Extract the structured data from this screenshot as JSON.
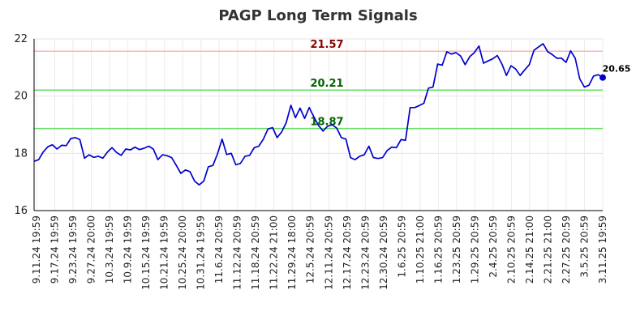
{
  "chart_data": {
    "type": "line",
    "title": "PAGP Long Term Signals",
    "ylim": [
      16,
      22
    ],
    "yticks": [
      16,
      18,
      20,
      22
    ],
    "grid": true,
    "xtick_labels": [
      "9.11.24 19:59",
      "9.17.24 19:59",
      "9.23.24 19:59",
      "9.27.24 20:00",
      "10.3.24 19:59",
      "10.9.24 19:59",
      "10.15.24 19:59",
      "10.21.24 19:59",
      "10.25.24 20:00",
      "10.31.24 19:59",
      "11.6.24 20:59",
      "11.12.24 20:59",
      "11.18.24 20:59",
      "11.22.24 21:00",
      "11.29.24 18:00",
      "12.5.24 20:59",
      "12.11.24 20:59",
      "12.17.24 20:59",
      "12.23.24 20:59",
      "12.30.24 20:59",
      "1.6.25 20:59",
      "1.10.25 21:00",
      "1.16.25 20:59",
      "1.23.25 20:59",
      "1.29.25 20:59",
      "2.4.25 20:59",
      "2.10.25 20:59",
      "2.14.25 21:00",
      "2.21.25 21:00",
      "2.27.25 20:59",
      "3.5.25 20:59",
      "3.11.25 19:59"
    ],
    "hlines": [
      {
        "value": 21.57,
        "label": "21.57",
        "color": "#ffb3b3",
        "label_color": "#8b0000"
      },
      {
        "value": 20.21,
        "label": "20.21",
        "color": "#66dd66",
        "label_color": "#006400"
      },
      {
        "value": 18.87,
        "label": "18.87",
        "color": "#66dd66",
        "label_color": "#006400"
      }
    ],
    "series": [
      {
        "color": "#0000cc",
        "values": [
          17.72,
          17.78,
          18.05,
          18.23,
          18.3,
          18.15,
          18.28,
          18.27,
          18.52,
          18.55,
          18.48,
          17.83,
          17.95,
          17.86,
          17.9,
          17.83,
          18.05,
          18.2,
          18.03,
          17.93,
          18.15,
          18.12,
          18.22,
          18.13,
          18.18,
          18.25,
          18.15,
          17.78,
          17.95,
          17.92,
          17.85,
          17.58,
          17.3,
          17.42,
          17.36,
          17.03,
          16.9,
          17.03,
          17.53,
          17.58,
          17.98,
          18.5,
          17.96,
          18.0,
          17.6,
          17.65,
          17.9,
          17.93,
          18.2,
          18.25,
          18.5,
          18.85,
          18.9,
          18.55,
          18.75,
          19.08,
          19.68,
          19.25,
          19.58,
          19.22,
          19.6,
          19.28,
          18.98,
          18.78,
          18.95,
          19.0,
          18.88,
          18.55,
          18.5,
          17.85,
          17.78,
          17.9,
          17.95,
          18.25,
          17.85,
          17.82,
          17.85,
          18.1,
          18.22,
          18.2,
          18.48,
          18.46,
          19.6,
          19.6,
          19.67,
          19.75,
          20.28,
          20.32,
          21.12,
          21.08,
          21.55,
          21.47,
          21.52,
          21.4,
          21.1,
          21.38,
          21.52,
          21.75,
          21.15,
          21.23,
          21.3,
          21.42,
          21.13,
          20.72,
          21.06,
          20.95,
          20.72,
          20.92,
          21.1,
          21.6,
          21.72,
          21.83,
          21.55,
          21.45,
          21.32,
          21.33,
          21.18,
          21.58,
          21.32,
          20.6,
          20.32,
          20.38,
          20.7,
          20.75,
          20.65
        ]
      }
    ],
    "last_value_label": "20.65"
  }
}
